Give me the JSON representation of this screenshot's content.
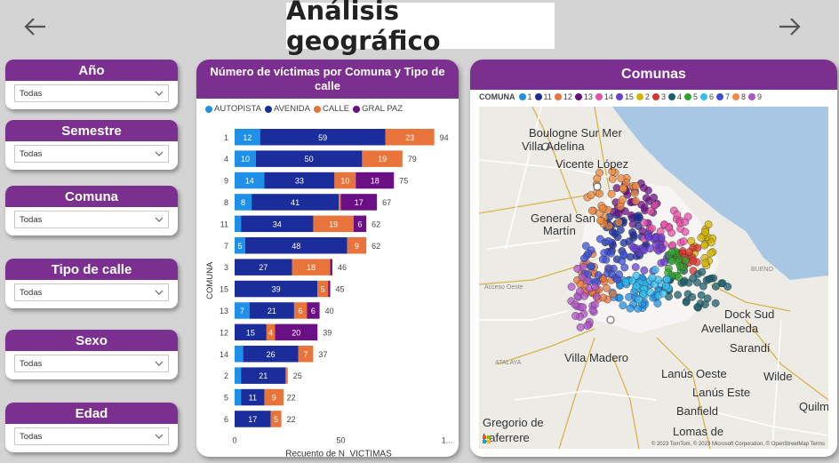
{
  "page": {
    "title": "Análisis geográfico"
  },
  "nav": {
    "back_icon": "arrow-left-icon",
    "forward_icon": "arrow-right-icon"
  },
  "filters": [
    {
      "key": "anio",
      "label": "Año",
      "value": "Todas"
    },
    {
      "key": "semestre",
      "label": "Semestre",
      "value": "Todas"
    },
    {
      "key": "comuna",
      "label": "Comuna",
      "value": "Todas"
    },
    {
      "key": "tipo-calle",
      "label": "Tipo de calle",
      "value": "Todas"
    },
    {
      "key": "sexo",
      "label": "Sexo",
      "value": "Todas"
    },
    {
      "key": "edad",
      "label": "Edad",
      "value": "Todas"
    }
  ],
  "bar_chart": {
    "title": "Número de víctimas por Comuna y Tipo de calle",
    "legend": [
      {
        "name": "AUTOPISTA",
        "color": "#1e90e8"
      },
      {
        "name": "AVENIDA",
        "color": "#1a2d9a"
      },
      {
        "name": "CALLE",
        "color": "#e8743b"
      },
      {
        "name": "GRAL PAZ",
        "color": "#6b0f85"
      }
    ],
    "ylabel": "COMUNA",
    "xlabel": "Recuento de N_VICTIMAS",
    "x_ticks": [
      "0",
      "50",
      "1..."
    ]
  },
  "chart_data": {
    "type": "bar",
    "orientation": "horizontal-stacked",
    "title": "Número de víctimas por Comuna y Tipo de calle",
    "xlabel": "Recuento de N_VICTIMAS",
    "ylabel": "COMUNA",
    "xlim": [
      0,
      100
    ],
    "categories": [
      "1",
      "4",
      "9",
      "8",
      "11",
      "7",
      "3",
      "15",
      "13",
      "12",
      "14",
      "2",
      "5",
      "6"
    ],
    "series": [
      {
        "name": "AUTOPISTA",
        "color": "#1e90e8",
        "values": [
          12,
          10,
          14,
          8,
          3,
          5,
          0,
          0,
          7,
          0,
          4,
          3,
          3,
          0
        ]
      },
      {
        "name": "AVENIDA",
        "color": "#1a2d9a",
        "values": [
          59,
          50,
          33,
          41,
          34,
          48,
          27,
          39,
          21,
          15,
          26,
          21,
          11,
          17
        ]
      },
      {
        "name": "CALLE",
        "color": "#e8743b",
        "values": [
          23,
          19,
          10,
          1,
          19,
          9,
          18,
          5,
          6,
          4,
          7,
          1,
          9,
          5
        ]
      },
      {
        "name": "GRAL PAZ",
        "color": "#6b0f85",
        "values": [
          0,
          0,
          18,
          17,
          6,
          0,
          1,
          1,
          6,
          20,
          0,
          0,
          0,
          0
        ]
      }
    ],
    "totals": [
      94,
      79,
      75,
      67,
      62,
      62,
      46,
      45,
      40,
      39,
      37,
      25,
      22,
      22
    ],
    "segment_labels": [
      [
        "12",
        "59",
        "23",
        ""
      ],
      [
        "10",
        "50",
        "19",
        ""
      ],
      [
        "14",
        "33",
        "10",
        "18"
      ],
      [
        "8",
        "41",
        "",
        "17"
      ],
      [
        "",
        "34",
        "19",
        "6"
      ],
      [
        "5",
        "48",
        "9",
        ""
      ],
      [
        "",
        "27",
        "18",
        ""
      ],
      [
        "",
        "39",
        "5",
        ""
      ],
      [
        "7",
        "21",
        "6",
        "6"
      ],
      [
        "",
        "15",
        "4",
        "20"
      ],
      [
        "",
        "26",
        "7",
        ""
      ],
      [
        "",
        "21",
        "",
        ""
      ],
      [
        "",
        "11",
        "9",
        ""
      ],
      [
        "",
        "17",
        "5",
        ""
      ]
    ]
  },
  "map": {
    "title": "Comunas",
    "legend_title": "COMUNA",
    "legend": [
      {
        "name": "1",
        "color": "#1e90e8"
      },
      {
        "name": "11",
        "color": "#1a2d9a"
      },
      {
        "name": "12",
        "color": "#e8743b"
      },
      {
        "name": "13",
        "color": "#6b0f85"
      },
      {
        "name": "14",
        "color": "#e84fa8"
      },
      {
        "name": "15",
        "color": "#6a3fcf"
      },
      {
        "name": "2",
        "color": "#d4b400"
      },
      {
        "name": "3",
        "color": "#d9342b"
      },
      {
        "name": "4",
        "color": "#1b5e6b"
      },
      {
        "name": "5",
        "color": "#2fa32f"
      },
      {
        "name": "6",
        "color": "#33bdf0"
      },
      {
        "name": "7",
        "color": "#3b4fd6"
      },
      {
        "name": "8",
        "color": "#f08a3e"
      },
      {
        "name": "9",
        "color": "#b152c9"
      }
    ],
    "places": [
      {
        "text": "Boulogne Sur Mer",
        "cls": ""
      },
      {
        "text": "Villa Adelina",
        "cls": ""
      },
      {
        "text": "Vicente López",
        "cls": ""
      },
      {
        "text": "General San",
        "cls": ""
      },
      {
        "text": "Martín",
        "cls": ""
      },
      {
        "text": "Dock Sud",
        "cls": ""
      },
      {
        "text": "Avellaneda",
        "cls": ""
      },
      {
        "text": "Sarandí",
        "cls": ""
      },
      {
        "text": "Villa Madero",
        "cls": ""
      },
      {
        "text": "Lanús Oeste",
        "cls": ""
      },
      {
        "text": "Lanús Este",
        "cls": ""
      },
      {
        "text": "Wilde",
        "cls": ""
      },
      {
        "text": "Banfield",
        "cls": ""
      },
      {
        "text": "Gregorio de",
        "cls": ""
      },
      {
        "text": "Laferrere",
        "cls": ""
      },
      {
        "text": "Lomas de",
        "cls": ""
      },
      {
        "text": "Quilm",
        "cls": ""
      },
      {
        "text": "Acceso Oeste",
        "cls": "small"
      },
      {
        "text": "ATALAYA",
        "cls": "small"
      },
      {
        "text": "BUENO",
        "cls": "small"
      }
    ],
    "attribution": "© 2023 TomTom, © 2023 Microsoft Corporation, © OpenStreetMap  Terms"
  }
}
